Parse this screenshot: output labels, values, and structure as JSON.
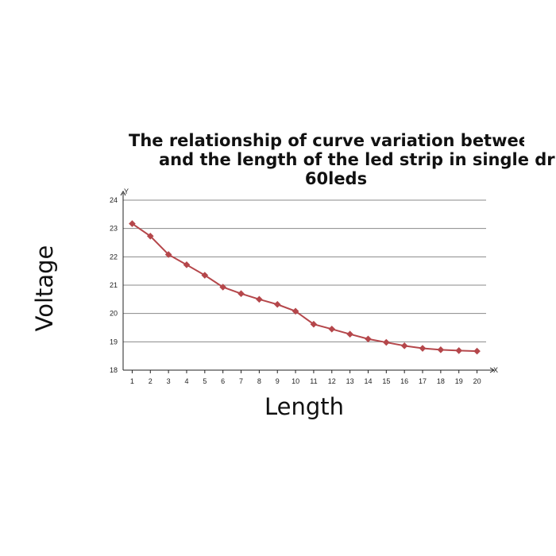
{
  "chart_data": {
    "type": "line",
    "title_lines": [
      "The relationship of curve variation between voltag",
      "and the length of the led strip in single drive",
      "60leds"
    ],
    "xlabel": "Length",
    "ylabel": "Voltage",
    "x_axis_marker": "X",
    "y_axis_marker": "Y",
    "x": [
      1,
      2,
      3,
      4,
      5,
      6,
      7,
      8,
      9,
      10,
      11,
      12,
      13,
      14,
      15,
      16,
      17,
      18,
      19,
      20
    ],
    "series": [
      {
        "values": [
          23.17,
          22.73,
          22.08,
          21.72,
          21.35,
          20.93,
          20.7,
          20.5,
          20.32,
          20.08,
          19.62,
          19.45,
          19.27,
          19.1,
          18.98,
          18.86,
          18.77,
          18.72,
          18.69,
          18.67
        ],
        "color": "#b5474b"
      }
    ],
    "yticks": [
      18,
      19,
      20,
      21,
      22,
      23,
      24
    ],
    "ylim": [
      18,
      24
    ],
    "xlim": [
      0.5,
      20.5
    ],
    "grid": true,
    "gridline_color": "#888888",
    "marker": "diamond"
  }
}
